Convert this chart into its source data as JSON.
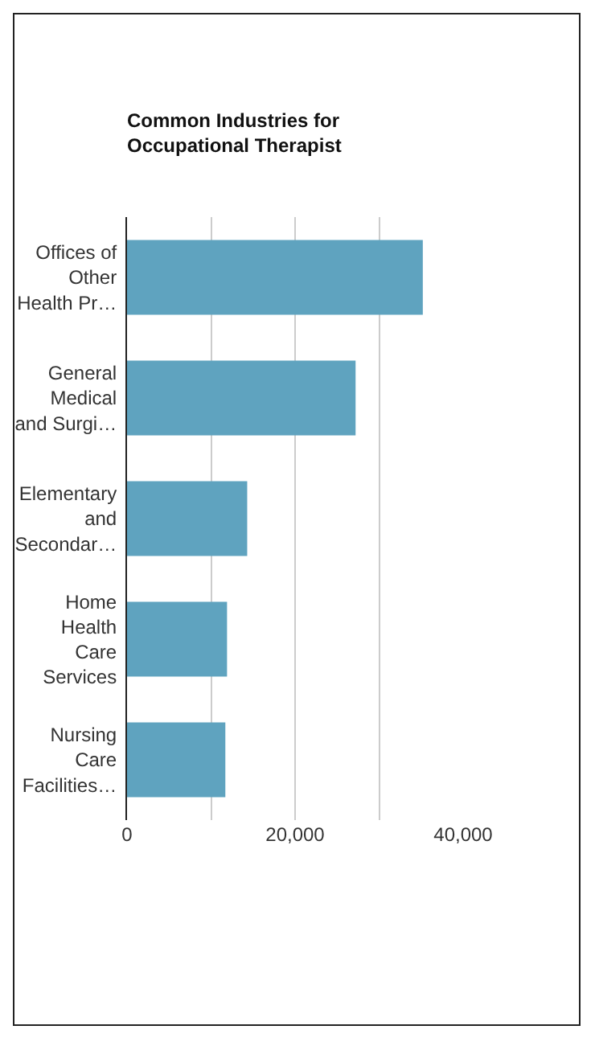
{
  "chart_data": {
    "type": "bar",
    "orientation": "horizontal",
    "title": "Common Industries for Occupational Therapist",
    "categories": [
      "Offices of Other Health Pr…",
      "General Medical and Surgi…",
      "Elementary and Secondar…",
      "Home Health Care Services",
      "Nursing Care Facilities…"
    ],
    "values": [
      35200,
      27200,
      14300,
      11900,
      11700
    ],
    "color": "#5fa3bf",
    "xlim": [
      0,
      40000
    ],
    "xticks": [
      0,
      {
        "value": 10000,
        "label": null
      },
      {
        "value": 20000,
        "label": "20,000"
      },
      {
        "value": 30000,
        "label": null
      },
      {
        "value": 40000,
        "label": "40,000"
      }
    ],
    "grid": "x"
  }
}
